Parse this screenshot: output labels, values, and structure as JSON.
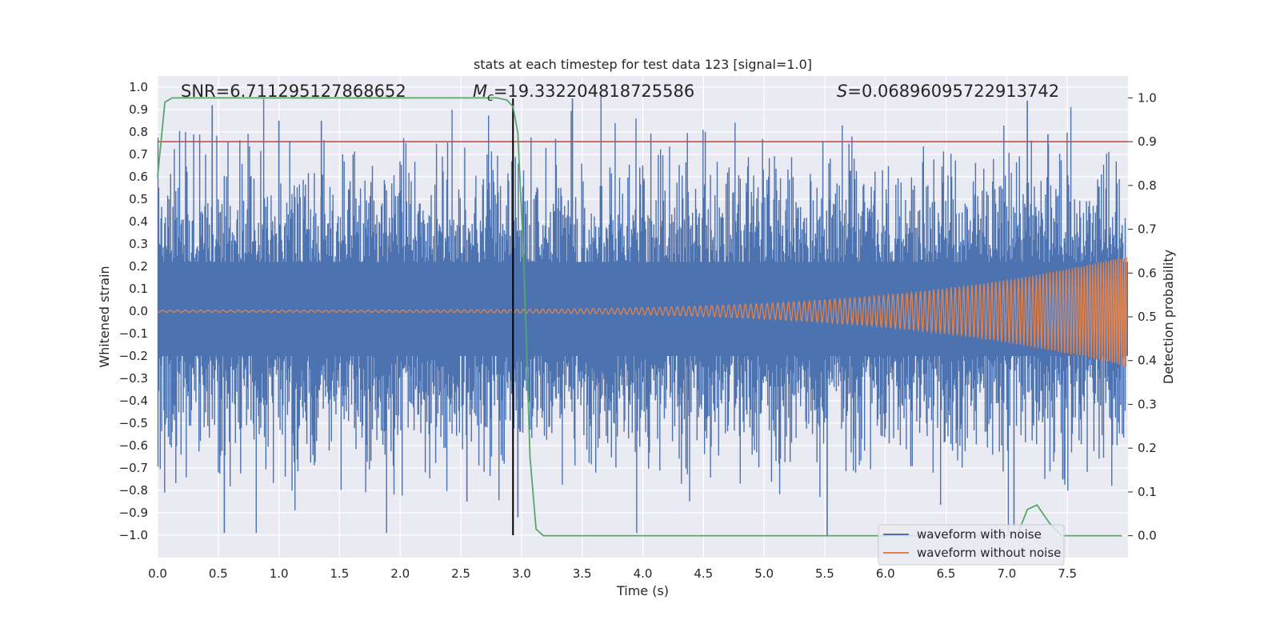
{
  "chart_data": {
    "type": "line",
    "title": "stats at each timestep for test data 123 [signal=1.0]",
    "xlabel": "Time (s)",
    "ylabel": "Whitened strain",
    "ylabel_right": "Detection probability",
    "xlim": [
      0.0,
      8.0
    ],
    "ylim": [
      -1.1,
      1.05
    ],
    "ylim_right": [
      -0.05,
      1.05
    ],
    "x_ticks": [
      0.0,
      0.5,
      1.0,
      1.5,
      2.0,
      2.5,
      3.0,
      3.5,
      4.0,
      4.5,
      5.0,
      5.5,
      6.0,
      6.5,
      7.0,
      7.5
    ],
    "x_tick_labels": [
      "0.0",
      "0.5",
      "1.0",
      "1.5",
      "2.0",
      "2.5",
      "3.0",
      "3.5",
      "4.0",
      "4.5",
      "5.0",
      "5.5",
      "6.0",
      "6.5",
      "7.0",
      "7.5"
    ],
    "y_ticks": [
      1.0,
      0.9,
      0.8,
      0.7,
      0.6,
      0.5,
      0.4,
      0.3,
      0.2,
      0.1,
      0.0,
      -0.1,
      -0.2,
      -0.3,
      -0.4,
      -0.5,
      -0.6,
      -0.7,
      -0.8,
      -0.9,
      -1.0
    ],
    "y_tick_labels": [
      "1.0",
      "0.9",
      "0.8",
      "0.7",
      "0.6",
      "0.5",
      "0.4",
      "0.3",
      "0.2",
      "0.1",
      "0.0",
      "−0.1",
      "−0.2",
      "−0.3",
      "−0.4",
      "−0.5",
      "−0.6",
      "−0.7",
      "−0.8",
      "−0.9",
      "−1.0"
    ],
    "y2_ticks": [
      1.0,
      0.9,
      0.8,
      0.7,
      0.6,
      0.5,
      0.4,
      0.3,
      0.2,
      0.1,
      0.0
    ],
    "y2_tick_labels": [
      "1.0",
      "0.9",
      "0.8",
      "0.7",
      "0.6",
      "0.5",
      "0.4",
      "0.3",
      "0.2",
      "0.1",
      "0.0"
    ],
    "annotations": {
      "snr": "SNR=6.711295127868652",
      "chirp_mass_prefix": "M",
      "chirp_mass_sub": "c",
      "chirp_mass_value": "=19.332204818725586",
      "s_prefix": "S",
      "s_value": "=0.06896095722913742"
    },
    "threshold_right": 0.9,
    "event_time": 2.93,
    "event_line_ylim": [
      -1.0,
      0.95
    ],
    "series": [
      {
        "name": "waveform with noise",
        "color": "#4c72b0",
        "description_values": "dense noisy whitened strain, amplitude mostly within ±0.5, peaks up to ~0.95 and down to ~-1.0",
        "envelope_typical": 0.45,
        "sample_spikes": [
          {
            "x": 0.45,
            "y": 0.92
          },
          {
            "x": 0.55,
            "y": -0.99
          },
          {
            "x": 1.0,
            "y": 0.85
          },
          {
            "x": 1.35,
            "y": 0.85
          },
          {
            "x": 2.55,
            "y": -0.85
          },
          {
            "x": 2.97,
            "y": -0.92
          },
          {
            "x": 3.42,
            "y": 0.95
          },
          {
            "x": 5.52,
            "y": -1.0
          },
          {
            "x": 7.17,
            "y": 0.94
          },
          {
            "x": 7.06,
            "y": -0.96
          },
          {
            "x": 7.34,
            "y": 0.79
          }
        ]
      },
      {
        "name": "waveform without noise",
        "color": "#dd8452",
        "description_values": "chirp signal, amplitude ~0.005 at t=0 growing to ~0.25 near t=8, frequency increasing",
        "amplitude_start": 0.005,
        "amplitude_end": 0.25
      },
      {
        "name": "detection probability",
        "axis": "right",
        "color": "#55a868",
        "x": [
          0.0,
          0.06,
          0.12,
          0.3,
          0.6,
          1.0,
          1.5,
          2.0,
          2.5,
          2.8,
          2.88,
          2.93,
          2.97,
          3.02,
          3.07,
          3.12,
          3.18,
          3.25,
          3.5,
          4.0,
          5.0,
          6.0,
          6.5,
          7.0,
          7.1,
          7.17,
          7.25,
          7.35,
          7.45,
          7.6,
          7.95
        ],
        "y": [
          0.82,
          0.99,
          1.0,
          1.0,
          1.0,
          1.0,
          1.0,
          1.0,
          1.0,
          1.0,
          0.995,
          0.98,
          0.92,
          0.62,
          0.18,
          0.015,
          0.0,
          0.0,
          0.0,
          0.0,
          0.0,
          0.0,
          0.0,
          0.0,
          0.01,
          0.06,
          0.07,
          0.03,
          0.0,
          0.0,
          0.0
        ]
      }
    ],
    "colors": {
      "axes_bg": "#eaeaf2",
      "grid": "#ffffff",
      "threshold": "#c44e52",
      "event_line": "#000000",
      "noise": "#4c72b0",
      "signal": "#dd8452",
      "probability": "#55a868"
    },
    "legend": {
      "placement": "lower-right",
      "entries": [
        "waveform with noise",
        "waveform without noise"
      ]
    }
  }
}
